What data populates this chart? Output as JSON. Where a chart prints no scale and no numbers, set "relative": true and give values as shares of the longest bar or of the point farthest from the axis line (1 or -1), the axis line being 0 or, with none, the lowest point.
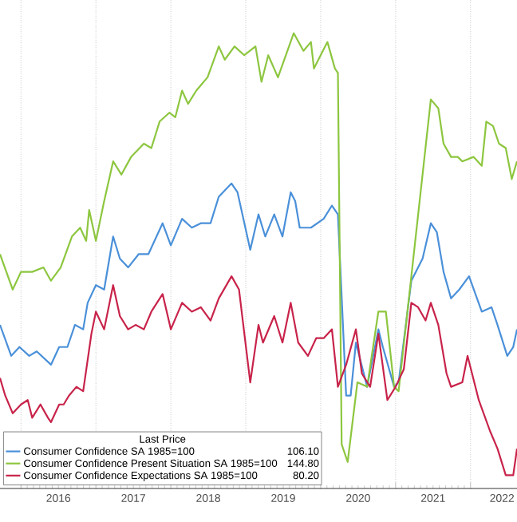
{
  "chart_data": {
    "type": "line",
    "relative": true,
    "legend": "bottom left",
    "legend_title": "Last Price",
    "grid": "x",
    "xlim": [
      2015.72,
      2022.62
    ],
    "xticks": [
      {
        "value": 2016,
        "label": null
      },
      {
        "value": 2017,
        "label": null
      },
      {
        "value": 2018,
        "label": null
      },
      {
        "value": 2019,
        "label": null
      },
      {
        "value": 2020,
        "label": null
      },
      {
        "value": 2021,
        "label": null
      },
      {
        "value": 2022,
        "label": null
      },
      {
        "value": 2016.5,
        "label": "2016"
      },
      {
        "value": 2017.5,
        "label": "2017"
      },
      {
        "value": 2018.5,
        "label": "2018"
      },
      {
        "value": 2019.5,
        "label": "2019"
      },
      {
        "value": 2020.5,
        "label": "2020"
      },
      {
        "value": 2021.5,
        "label": "2021"
      },
      {
        "value": 2022.42,
        "label": "2022"
      }
    ],
    "annotations": [
      "106.10",
      "144.80",
      "80.20"
    ],
    "series": [
      {
        "name": "Consumer Confidence SA 1985=100",
        "color": "#4a90d9",
        "x": [
          2015.72,
          2015.87,
          2015.98,
          2016.11,
          2016.21,
          2016.4,
          2016.51,
          2016.62,
          2016.72,
          2016.83,
          2016.89,
          2017.0,
          2017.11,
          2017.23,
          2017.32,
          2017.43,
          2017.57,
          2017.7,
          2017.89,
          2018.0,
          2018.15,
          2018.28,
          2018.4,
          2018.53,
          2018.64,
          2018.81,
          2018.89,
          2019.06,
          2019.17,
          2019.26,
          2019.38,
          2019.49,
          2019.6,
          2019.66,
          2019.72,
          2019.87,
          2020.04,
          2020.15,
          2020.23,
          2020.34,
          2020.4,
          2020.47,
          2020.62,
          2020.77,
          2020.83,
          2020.98,
          2021.04,
          2021.21,
          2021.36,
          2021.47,
          2021.55,
          2021.64,
          2021.74,
          2021.85,
          2021.98,
          2022.15,
          2022.28,
          2022.36,
          2022.49,
          2022.57,
          2022.62
        ],
        "values": [
          0.34,
          0.27,
          0.29,
          0.27,
          0.28,
          0.25,
          0.29,
          0.29,
          0.34,
          0.33,
          0.39,
          0.43,
          0.42,
          0.54,
          0.49,
          0.47,
          0.5,
          0.5,
          0.57,
          0.52,
          0.58,
          0.56,
          0.57,
          0.57,
          0.63,
          0.66,
          0.64,
          0.51,
          0.59,
          0.54,
          0.59,
          0.54,
          0.64,
          0.62,
          0.56,
          0.56,
          0.58,
          0.61,
          0.59,
          0.18,
          0.18,
          0.3,
          0.2,
          0.33,
          0.29,
          0.2,
          0.21,
          0.44,
          0.49,
          0.57,
          0.55,
          0.46,
          0.4,
          0.42,
          0.45,
          0.37,
          0.38,
          0.34,
          0.27,
          0.29,
          0.33
        ]
      },
      {
        "name": "Consumer Confidence Present Situation SA 1985=100",
        "color": "#8dc63f",
        "x": [
          2015.72,
          2015.89,
          2016.0,
          2016.15,
          2016.3,
          2016.4,
          2016.53,
          2016.68,
          2016.79,
          2016.87,
          2016.91,
          2017.0,
          2017.11,
          2017.23,
          2017.34,
          2017.47,
          2017.64,
          2017.74,
          2017.85,
          2017.98,
          2018.06,
          2018.15,
          2018.23,
          2018.34,
          2018.49,
          2018.64,
          2018.72,
          2018.85,
          2018.98,
          2019.13,
          2019.21,
          2019.3,
          2019.43,
          2019.64,
          2019.77,
          2019.87,
          2019.91,
          2020.09,
          2020.19,
          2020.23,
          2020.28,
          2020.36,
          2020.49,
          2020.62,
          2020.77,
          2020.87,
          2020.98,
          2021.04,
          2021.21,
          2021.47,
          2021.57,
          2021.64,
          2021.74,
          2021.83,
          2021.89,
          2022.04,
          2022.15,
          2022.21,
          2022.3,
          2022.38,
          2022.47,
          2022.55,
          2022.62
        ],
        "values": [
          0.5,
          0.42,
          0.46,
          0.46,
          0.47,
          0.44,
          0.47,
          0.54,
          0.56,
          0.53,
          0.6,
          0.53,
          0.62,
          0.71,
          0.68,
          0.72,
          0.75,
          0.74,
          0.8,
          0.82,
          0.81,
          0.87,
          0.84,
          0.87,
          0.9,
          0.97,
          0.94,
          0.97,
          0.95,
          0.97,
          0.89,
          0.95,
          0.9,
          1.0,
          0.96,
          0.98,
          0.92,
          0.98,
          0.92,
          0.91,
          0.07,
          0.03,
          0.21,
          0.2,
          0.37,
          0.37,
          0.2,
          0.19,
          0.45,
          0.85,
          0.83,
          0.75,
          0.72,
          0.72,
          0.71,
          0.72,
          0.7,
          0.8,
          0.79,
          0.75,
          0.74,
          0.67,
          0.71
        ]
      },
      {
        "name": "Consumer Confidence Expectations SA 1985=100",
        "color": "#c8234a",
        "x": [
          2015.72,
          2015.79,
          2015.89,
          2016.0,
          2016.09,
          2016.15,
          2016.26,
          2016.36,
          2016.4,
          2016.51,
          2016.57,
          2016.64,
          2016.74,
          2016.83,
          2016.94,
          2017.0,
          2017.11,
          2017.23,
          2017.32,
          2017.43,
          2017.53,
          2017.64,
          2017.74,
          2017.89,
          2018.0,
          2018.15,
          2018.28,
          2018.4,
          2018.53,
          2018.64,
          2018.81,
          2018.91,
          2019.06,
          2019.17,
          2019.23,
          2019.38,
          2019.49,
          2019.6,
          2019.7,
          2019.83,
          2019.94,
          2020.04,
          2020.15,
          2020.23,
          2020.34,
          2020.47,
          2020.55,
          2020.66,
          2020.77,
          2020.89,
          2021.0,
          2021.11,
          2021.21,
          2021.3,
          2021.4,
          2021.47,
          2021.57,
          2021.68,
          2021.74,
          2021.89,
          2021.96,
          2022.11,
          2022.26,
          2022.36,
          2022.47,
          2022.57,
          2022.62
        ],
        "values": [
          0.22,
          0.18,
          0.14,
          0.16,
          0.17,
          0.13,
          0.16,
          0.13,
          0.12,
          0.16,
          0.16,
          0.18,
          0.2,
          0.19,
          0.32,
          0.37,
          0.33,
          0.43,
          0.36,
          0.33,
          0.34,
          0.33,
          0.37,
          0.41,
          0.33,
          0.39,
          0.37,
          0.38,
          0.35,
          0.4,
          0.45,
          0.42,
          0.21,
          0.34,
          0.3,
          0.36,
          0.3,
          0.39,
          0.3,
          0.27,
          0.31,
          0.31,
          0.33,
          0.2,
          0.25,
          0.33,
          0.23,
          0.2,
          0.32,
          0.17,
          0.2,
          0.24,
          0.39,
          0.38,
          0.35,
          0.39,
          0.34,
          0.23,
          0.2,
          0.21,
          0.27,
          0.17,
          0.1,
          0.06,
          0.0,
          0.0,
          0.06
        ]
      }
    ]
  }
}
